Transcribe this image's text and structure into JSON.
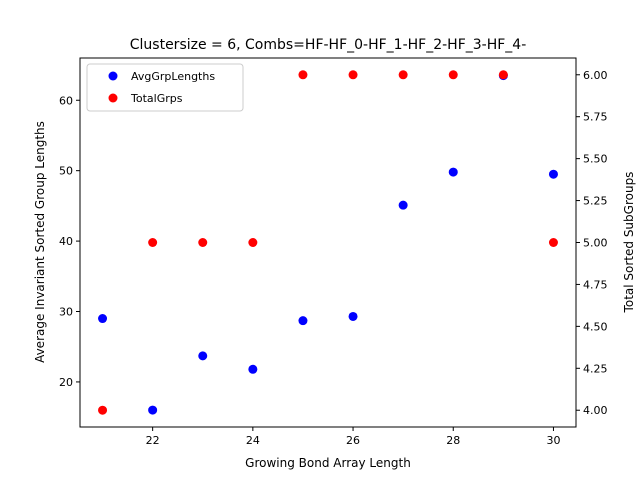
{
  "chart_data": {
    "type": "scatter",
    "title": "Clustersize = 6, Combs=HF-HF_0-HF_1-HF_2-HF_3-HF_4-",
    "xlabel": "Growing Bond Array Length",
    "ylabel_left": "Average Invariant Sorted Group Lengths",
    "ylabel_right": "Total Sorted SubGroups",
    "xlim": [
      20.55,
      30.45
    ],
    "ylim_left": [
      13.6,
      66.0
    ],
    "ylim_right": [
      3.9,
      6.1
    ],
    "x_ticks": [
      22,
      24,
      26,
      28,
      30
    ],
    "y_left_ticks": [
      20,
      30,
      40,
      50,
      60
    ],
    "y_right_ticks": [
      4.0,
      4.25,
      4.5,
      4.75,
      5.0,
      5.25,
      5.5,
      5.75,
      6.0
    ],
    "y_right_tick_labels": [
      "4.00",
      "4.25",
      "4.50",
      "4.75",
      "5.00",
      "5.25",
      "5.50",
      "5.75",
      "6.00"
    ],
    "legend_position": "upper-left",
    "series": [
      {
        "name": "AvgGrpLengths",
        "axis": "left",
        "color": "#0000ff",
        "x": [
          21,
          22,
          23,
          24,
          25,
          26,
          27,
          28,
          29,
          30
        ],
        "y": [
          29.0,
          16.0,
          23.7,
          21.8,
          28.7,
          29.3,
          45.1,
          49.8,
          63.5,
          49.5
        ]
      },
      {
        "name": "TotalGrps",
        "axis": "right",
        "color": "#ff0000",
        "x": [
          21,
          22,
          23,
          24,
          25,
          26,
          27,
          28,
          29,
          30
        ],
        "y": [
          4,
          5,
          5,
          5,
          6,
          6,
          6,
          6,
          6,
          5
        ]
      }
    ]
  }
}
